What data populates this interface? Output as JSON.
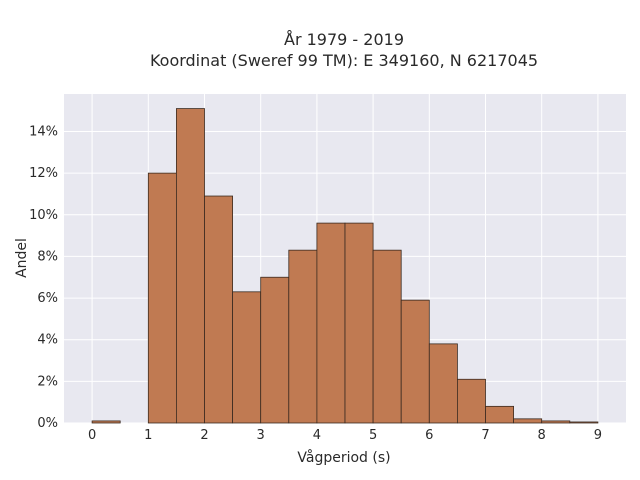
{
  "chart_data": {
    "type": "bar",
    "title_line1": "År 1979 - 2019",
    "title_line2": "Koordinat (Sweref 99 TM): E 349160, N 6217045",
    "xlabel": "Vågperiod (s)",
    "ylabel": "Andel",
    "bin_width": 0.5,
    "bin_starts": [
      0,
      0.5,
      1,
      1.5,
      2,
      2.5,
      3,
      3.5,
      4,
      4.5,
      5,
      5.5,
      6,
      6.5,
      7,
      7.5,
      8,
      8.5
    ],
    "values": [
      0.1,
      0,
      12.0,
      15.1,
      10.9,
      6.3,
      7.0,
      8.3,
      9.6,
      9.6,
      8.3,
      5.9,
      3.8,
      2.1,
      0.8,
      0.2,
      0.1,
      0.05
    ],
    "xlim": [
      -0.5,
      9.5
    ],
    "ylim": [
      0,
      15.8
    ],
    "x_ticks": [
      0,
      1,
      2,
      3,
      4,
      5,
      6,
      7,
      8,
      9
    ],
    "x_tick_labels": [
      "0",
      "1",
      "2",
      "3",
      "4",
      "5",
      "6",
      "7",
      "8",
      "9"
    ],
    "y_ticks": [
      0,
      2,
      4,
      6,
      8,
      10,
      12,
      14
    ],
    "y_tick_labels": [
      "0%",
      "2%",
      "4%",
      "6%",
      "8%",
      "10%",
      "12%",
      "14%"
    ],
    "grid": true,
    "bar_color": "#c07a52",
    "bar_edge_color": "#3a2a20",
    "plot_background": "#e8e8f0",
    "grid_color": "#ffffff"
  }
}
